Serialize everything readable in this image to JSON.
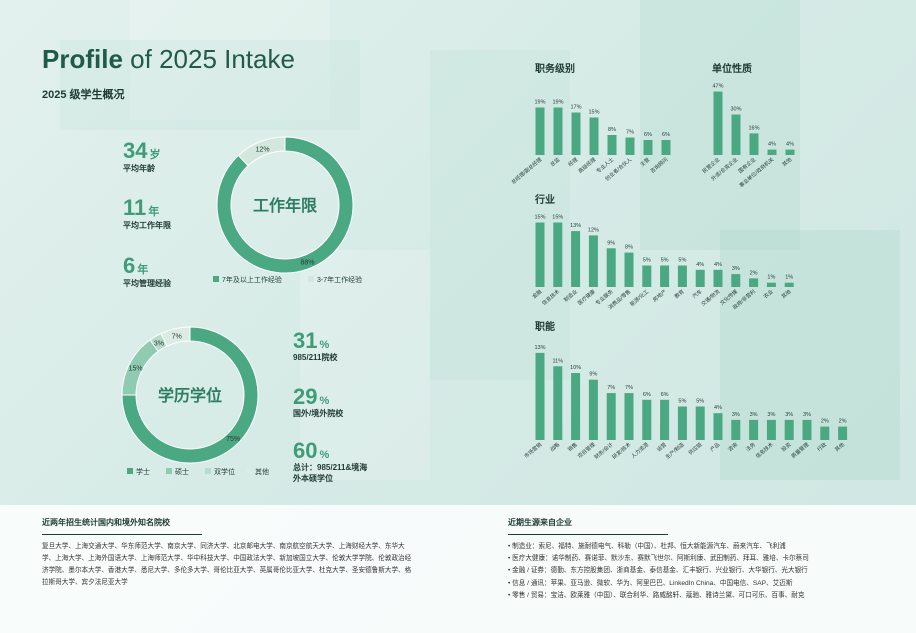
{
  "header": {
    "title_bold": "Profile",
    "title_rest": "of 2025 Intake",
    "subtitle": "2025 级学生概况"
  },
  "stats": [
    {
      "value": 34,
      "unit": "岁",
      "label": "平均年龄"
    },
    {
      "value": 11,
      "unit": "年",
      "label": "平均工作年限"
    },
    {
      "value": 6,
      "unit": "年",
      "label": "平均管理经验"
    }
  ],
  "rates": [
    {
      "value": 31,
      "unit": "%",
      "label": "985/211院校"
    },
    {
      "value": 29,
      "unit": "%",
      "label": "国外/境外院校"
    },
    {
      "value": 60,
      "unit": "%",
      "label": "总计：985/211&境海外本硕学位"
    }
  ],
  "chart_data": [
    {
      "type": "pie",
      "donut": true,
      "center_label": "工作年限",
      "categories": [
        "7年及以上工作经验",
        "3-7年工作经验"
      ],
      "values": [
        88,
        12
      ],
      "value_labels": [
        "88%",
        "12%"
      ],
      "colors": [
        "#4aa883",
        "#d3e7de"
      ]
    },
    {
      "type": "pie",
      "donut": true,
      "center_label": "学历学位",
      "categories": [
        "学士",
        "硕士",
        "双学位",
        "其他"
      ],
      "values": [
        75,
        15,
        3,
        7
      ],
      "value_labels": [
        "75%",
        "15%",
        "3%",
        "7%"
      ],
      "colors": [
        "#4aa883",
        "#8ecbb1",
        "#b7dccb",
        "#dcebe4"
      ]
    },
    {
      "type": "bar",
      "title": "职务级别",
      "categories": [
        "总经理/副总经理",
        "总监",
        "经理",
        "高级经理",
        "专业人士",
        "创业者/合伙人",
        "主管",
        "咨询顾问"
      ],
      "values": [
        19,
        19,
        17,
        15,
        8,
        7,
        6,
        6
      ],
      "value_labels": [
        "19%",
        "19%",
        "17%",
        "15%",
        "8%",
        "7%",
        "6%",
        "6%"
      ],
      "color": "#4aa883"
    },
    {
      "type": "bar",
      "title": "单位性质",
      "categories": [
        "民营企业",
        "外资/合资企业",
        "国有企业",
        "事业单位/政府机关",
        "其他"
      ],
      "values": [
        47,
        30,
        16,
        4,
        4
      ],
      "value_labels": [
        "47%",
        "30%",
        "16%",
        "4%",
        "4%"
      ],
      "color": "#4aa883"
    },
    {
      "type": "bar",
      "title": "行业",
      "categories": [
        "金融",
        "信息技术",
        "制造业",
        "医疗健康",
        "专业服务",
        "消费品/零售",
        "能源/化工",
        "房地产",
        "教育",
        "汽车",
        "交通/物流",
        "文化传媒",
        "政府/非营利",
        "农业",
        "其他"
      ],
      "values": [
        15,
        15,
        13,
        12,
        9,
        8,
        5,
        5,
        5,
        4,
        4,
        3,
        2,
        1,
        1
      ],
      "value_labels": [
        "15%",
        "15%",
        "13%",
        "12%",
        "9%",
        "8%",
        "5%",
        "5%",
        "5%",
        "4%",
        "4%",
        "3%",
        "2%",
        "1%",
        "1%"
      ],
      "color": "#4aa883"
    },
    {
      "type": "bar",
      "title": "职能",
      "categories": [
        "市场营销",
        "战略",
        "销售",
        "项目管理",
        "财务/会计",
        "研发/技术",
        "人力资源",
        "运营",
        "生产/制造",
        "供应链",
        "产品",
        "咨询",
        "法务",
        "信息技术",
        "投资",
        "质量管理",
        "行政",
        "其他"
      ],
      "values": [
        13,
        11,
        10,
        9,
        7,
        7,
        6,
        6,
        5,
        5,
        4,
        3,
        3,
        3,
        3,
        3,
        2,
        2
      ],
      "value_labels": [
        "13%",
        "11%",
        "10%",
        "9%",
        "7%",
        "7%",
        "6%",
        "6%",
        "5%",
        "5%",
        "4%",
        "3%",
        "3%",
        "3%",
        "3%",
        "3%",
        "2%",
        "2%"
      ],
      "color": "#4aa883"
    }
  ],
  "schools": {
    "heading": "近两年招生统计国内和境外知名院校",
    "text": "复旦大学、上海交通大学、华东师范大学、南京大学、同济大学、北京邮电大学、南京航空航天大学、上海财经大学、东华大学、上海大学、上海外国语大学、上海师范大学、华中科技大学、中国政法大学、新加坡国立大学、伦敦大学学院、伦敦政治经济学院、墨尔本大学、香港大学、悉尼大学、多伦多大学、哥伦比亚大学、英属哥伦比亚大学、杜克大学、圣安德鲁斯大学、格拉斯哥大学、宾夕法尼亚大学"
  },
  "companies": {
    "heading": "近期生源来自企业",
    "lines": [
      "• 制造业：索尼、福特、施耐德电气、科勒（中国）、杜邦、恒大新能源汽车、蔚来汽车、飞利浦",
      "• 医疗大健康：诺华制药、赛诺菲、默沙东、赛默飞世尔、阿斯利康、武田制药、拜耳、雅培、卡尔蔡司",
      "• 金融 / 证券：德勤、东方控股集团、浙商基金、泰信基金、汇丰银行、兴业银行、大华银行、光大银行",
      "• 信息 / 通讯：苹果、亚马逊、微软、华为、阿里巴巴、LinkedIn China、中国电信、SAP、艾迈斯",
      "• 零售 / 贸易：宝洁、欧莱雅（中国）、联合利华、路威酩轩、蔻驰、雅诗兰黛、可口可乐、百事、耐克"
    ]
  }
}
